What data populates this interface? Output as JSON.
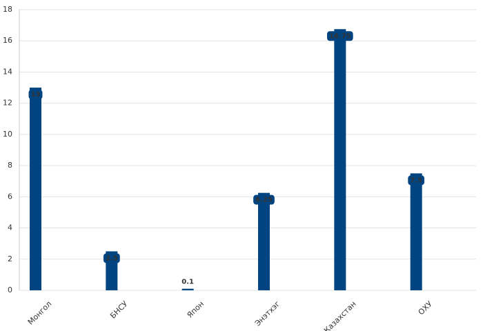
{
  "chart_data": {
    "type": "bar",
    "categories": [
      "Монгол",
      "БНСУ",
      "Япон",
      "Энэтхэг",
      "Казахстан",
      "ОХУ"
    ],
    "values": [
      13,
      2.5,
      0.1,
      6.25,
      16.75,
      7.5
    ],
    "color": "#004481",
    "ylim": [
      0,
      18
    ],
    "yticks": [
      0,
      2,
      4,
      6,
      8,
      10,
      12,
      14,
      16,
      18
    ],
    "grid": true
  }
}
